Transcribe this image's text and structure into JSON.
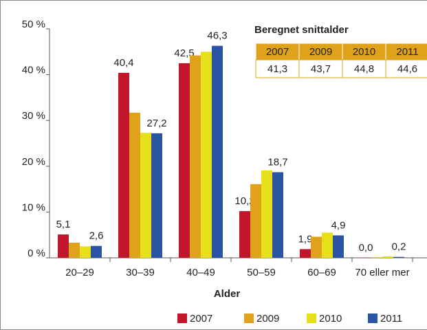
{
  "chart_data": {
    "type": "bar",
    "categories": [
      "20–29",
      "30–39",
      "40–49",
      "50–59",
      "60–69",
      "70 eller mer"
    ],
    "x_label": "Alder",
    "series": [
      {
        "name": "2007",
        "color": "#c0172d",
        "values": [
          5.1,
          40.4,
          42.5,
          10.2,
          1.9,
          0.0
        ],
        "value_labels": [
          "5,1",
          "40,4",
          "42,5",
          "10,2",
          "1,9",
          "0,0"
        ]
      },
      {
        "name": "2009",
        "color": "#e0a21a",
        "values": [
          3.3,
          31.7,
          44.2,
          16.1,
          4.6,
          0.1
        ]
      },
      {
        "name": "2010",
        "color": "#e6e01a",
        "values": [
          2.5,
          27.3,
          45.0,
          19.1,
          5.5,
          0.3
        ]
      },
      {
        "name": "2011",
        "color": "#2a55a5",
        "values": [
          2.6,
          27.2,
          46.3,
          18.7,
          4.9,
          0.2
        ],
        "value_labels": [
          "2,6",
          "27,2",
          "46,3",
          "18,7",
          "4,9",
          "0,2"
        ]
      }
    ],
    "ylim": [
      0,
      50
    ],
    "yticks": [
      {
        "value": 0,
        "label": "0 %"
      },
      {
        "value": 10,
        "label": "10 %"
      },
      {
        "value": 20,
        "label": "20 %"
      },
      {
        "value": 30,
        "label": "30 %"
      },
      {
        "value": 40,
        "label": "40 %"
      },
      {
        "value": 50,
        "label": "50 %"
      }
    ],
    "legend": "bottom-right",
    "table": {
      "title": "Beregnet snittalder",
      "header": [
        "2007",
        "2009",
        "2010",
        "2011"
      ],
      "rows": [
        [
          "41,3",
          "43,7",
          "44,8",
          "44,6"
        ]
      ]
    }
  }
}
